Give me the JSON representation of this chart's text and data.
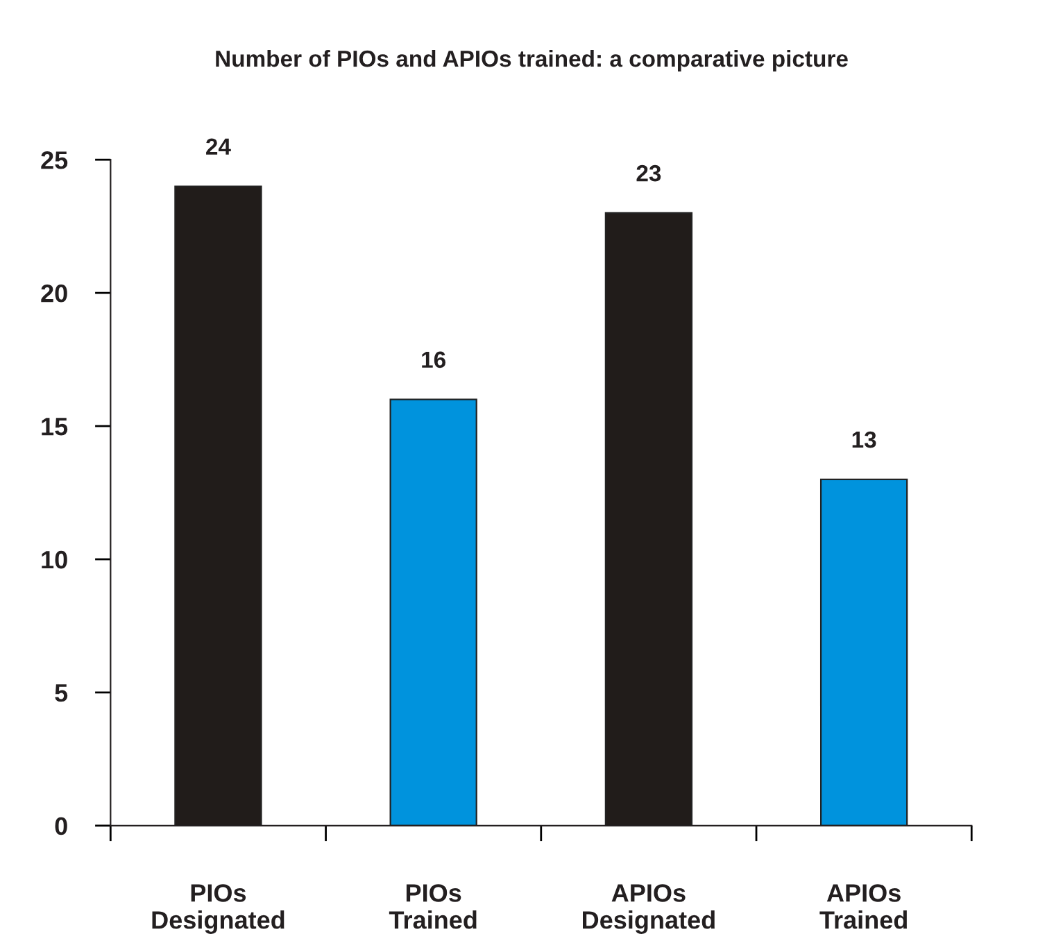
{
  "chart_data": {
    "type": "bar",
    "title": "Number of PIOs and APIOs trained: a comparative picture",
    "categories": [
      "PIOs\nDesignated",
      "PIOs\nTrained",
      "APIOs\nDesignated",
      "APIOs\nTrained"
    ],
    "values": [
      24,
      16,
      23,
      13
    ],
    "colors": [
      "#211c1a",
      "#0093dd",
      "#211c1a",
      "#0093dd"
    ],
    "ylim": [
      0,
      25
    ],
    "yticks": [
      0,
      5,
      10,
      15,
      20,
      25
    ],
    "data_labels": true,
    "grid": false,
    "legend": false
  }
}
